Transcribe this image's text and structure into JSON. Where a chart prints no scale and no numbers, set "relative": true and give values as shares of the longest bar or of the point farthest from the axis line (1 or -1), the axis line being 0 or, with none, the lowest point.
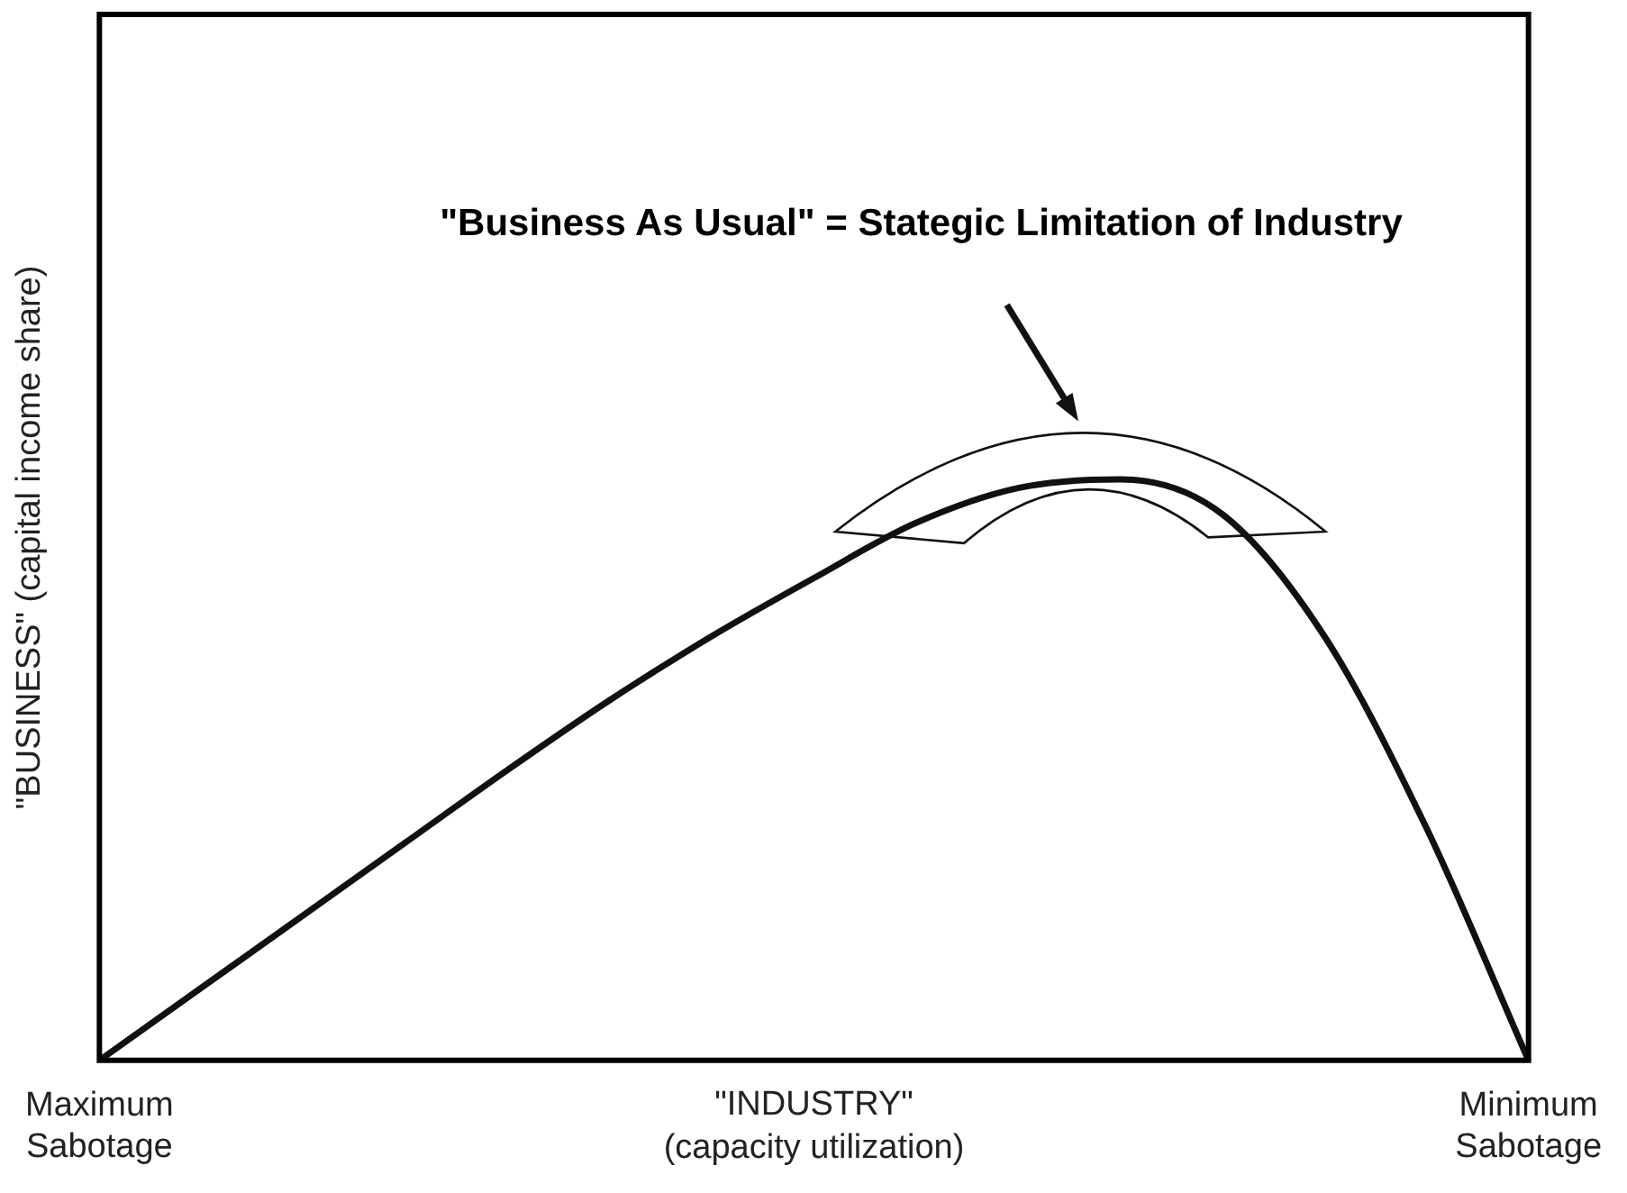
{
  "chart_data": {
    "type": "line",
    "relative": true,
    "xlabel": "\"INDUSTRY\" (capacity utilization)",
    "ylabel": "\"BUSINESS\" (capital income share)",
    "annotations": [
      "\"Business As Usual\" = Stategic Limitation of Industry"
    ],
    "categories": [
      "Maximum Sabotage",
      null,
      null,
      null,
      null,
      null,
      null,
      null,
      null,
      null,
      null,
      null,
      null,
      null,
      "Minimum Sabotage"
    ],
    "series": [
      {
        "color": "#111111",
        "values": [
          0,
          0.125,
          0.25,
          0.375,
          0.5,
          0.62,
          0.73,
          0.83,
          0.925,
          0.985,
          1,
          0.94,
          0.73,
          0.4,
          0
        ]
      }
    ],
    "marker": "none",
    "line_style": "solid"
  }
}
